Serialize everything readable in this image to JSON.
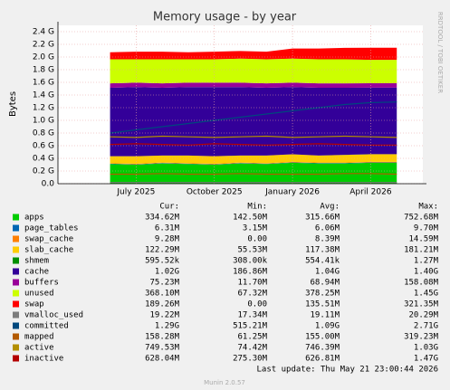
{
  "chart_data": {
    "type": "area",
    "title": "Memory usage - by year",
    "y_label": "Bytes",
    "side_text": "RRDTOOL / TOBI OETIKER",
    "grid": true,
    "x": [
      "2025-06",
      "2025-07",
      "2025-08",
      "2025-09",
      "2025-10",
      "2025-11",
      "2025-12",
      "2026-01",
      "2026-02",
      "2026-03",
      "2026-04",
      "2026-05"
    ],
    "xlim": [
      "2025-04",
      "2026-06"
    ],
    "xticks": [
      {
        "value": "2025-07",
        "label": "July 2025"
      },
      {
        "value": "2025-10",
        "label": "October 2025"
      },
      {
        "value": "2026-01",
        "label": "January 2026"
      },
      {
        "value": "2026-04",
        "label": "April 2026"
      }
    ],
    "ylim": [
      0,
      2.5
    ],
    "yticks": [
      {
        "value": 0,
        "label": "0.0"
      },
      {
        "value": 0.2,
        "label": "0.2 G"
      },
      {
        "value": 0.4,
        "label": "0.4 G"
      },
      {
        "value": 0.6,
        "label": "0.6 G"
      },
      {
        "value": 0.8,
        "label": "0.8 G"
      },
      {
        "value": 1.0,
        "label": "1.0 G"
      },
      {
        "value": 1.2,
        "label": "1.2 G"
      },
      {
        "value": 1.4,
        "label": "1.4 G"
      },
      {
        "value": 1.6,
        "label": "1.6 G"
      },
      {
        "value": 1.8,
        "label": "1.8 G"
      },
      {
        "value": 2.0,
        "label": "2.0 G"
      },
      {
        "value": 2.2,
        "label": "2.2 G"
      },
      {
        "value": 2.4,
        "label": "2.4 G"
      }
    ],
    "stats_headers": [
      "Cur:",
      "Min:",
      "Avg:",
      "Max:"
    ],
    "series": [
      {
        "name": "apps",
        "color": "#00cc00",
        "draw": "area",
        "stats": [
          "334.62M",
          "142.50M",
          "315.66M",
          "752.68M"
        ],
        "values": [
          0.31,
          0.3,
          0.32,
          0.31,
          0.3,
          0.32,
          0.31,
          0.33,
          0.32,
          0.32,
          0.33,
          0.33
        ]
      },
      {
        "name": "page_tables",
        "color": "#0066b3",
        "draw": "area",
        "stats": [
          "6.31M",
          "3.15M",
          "6.06M",
          "9.70M"
        ],
        "values": [
          0.006,
          0.006,
          0.006,
          0.006,
          0.006,
          0.006,
          0.006,
          0.006,
          0.006,
          0.006,
          0.006,
          0.006
        ]
      },
      {
        "name": "swap_cache",
        "color": "#ff8000",
        "draw": "area",
        "stats": [
          "9.28M",
          "0.00",
          "8.39M",
          "14.59M"
        ],
        "values": [
          0.008,
          0.008,
          0.008,
          0.008,
          0.008,
          0.008,
          0.008,
          0.008,
          0.008,
          0.008,
          0.009,
          0.009
        ]
      },
      {
        "name": "slab_cache",
        "color": "#ffcc00",
        "draw": "area",
        "stats": [
          "122.29M",
          "55.53M",
          "117.38M",
          "181.21M"
        ],
        "values": [
          0.11,
          0.12,
          0.11,
          0.12,
          0.12,
          0.11,
          0.12,
          0.12,
          0.11,
          0.12,
          0.12,
          0.12
        ]
      },
      {
        "name": "shmem",
        "color": "#008f00",
        "draw": "area",
        "stats": [
          "595.52k",
          "308.00k",
          "554.41k",
          "1.27M"
        ],
        "values": [
          0.0005,
          0.0005,
          0.0005,
          0.0005,
          0.0005,
          0.0005,
          0.0005,
          0.0005,
          0.0005,
          0.0005,
          0.0006,
          0.0006
        ]
      },
      {
        "name": "cache",
        "color": "#330099",
        "draw": "area",
        "stats": [
          "1.02G",
          "186.86M",
          "1.04G",
          "1.40G"
        ],
        "values": [
          1.08,
          1.09,
          1.07,
          1.08,
          1.09,
          1.08,
          1.07,
          1.06,
          1.07,
          1.06,
          1.05,
          1.05
        ]
      },
      {
        "name": "buffers",
        "color": "#990099",
        "draw": "area",
        "stats": [
          "75.23M",
          "11.70M",
          "68.94M",
          "158.08M"
        ],
        "values": [
          0.07,
          0.07,
          0.07,
          0.07,
          0.07,
          0.07,
          0.07,
          0.07,
          0.07,
          0.07,
          0.07,
          0.07
        ]
      },
      {
        "name": "unused",
        "color": "#ccff00",
        "draw": "area",
        "stats": [
          "368.10M",
          "67.32M",
          "378.25M",
          "1.45G"
        ],
        "values": [
          0.38,
          0.37,
          0.38,
          0.37,
          0.37,
          0.38,
          0.38,
          0.38,
          0.38,
          0.38,
          0.37,
          0.37
        ]
      },
      {
        "name": "swap",
        "color": "#ff0000",
        "draw": "area",
        "stats": [
          "189.26M",
          "0.00",
          "135.51M",
          "321.35M"
        ],
        "values": [
          0.11,
          0.12,
          0.12,
          0.11,
          0.12,
          0.12,
          0.12,
          0.16,
          0.17,
          0.18,
          0.19,
          0.19
        ]
      },
      {
        "name": "vmalloc_used",
        "color": "#7d7d7d",
        "draw": "line",
        "stats": [
          "19.22M",
          "17.34M",
          "19.11M",
          "20.29M"
        ],
        "values": [
          0.019,
          0.019,
          0.019,
          0.019,
          0.019,
          0.019,
          0.019,
          0.019,
          0.019,
          0.019,
          0.019,
          0.019
        ]
      },
      {
        "name": "committed",
        "color": "#00487d",
        "draw": "line",
        "stats": [
          "1.29G",
          "515.21M",
          "1.09G",
          "2.71G"
        ],
        "values": [
          0.8,
          0.85,
          0.9,
          0.95,
          1.0,
          1.05,
          1.1,
          1.15,
          1.2,
          1.25,
          1.28,
          1.29
        ]
      },
      {
        "name": "mapped",
        "color": "#b35a00",
        "draw": "line",
        "stats": [
          "158.28M",
          "61.25M",
          "155.00M",
          "319.23M"
        ],
        "values": [
          0.15,
          0.15,
          0.16,
          0.15,
          0.15,
          0.16,
          0.15,
          0.15,
          0.15,
          0.16,
          0.16,
          0.15
        ]
      },
      {
        "name": "active",
        "color": "#b38f00",
        "draw": "line",
        "stats": [
          "749.53M",
          "74.42M",
          "746.39M",
          "1.03G"
        ],
        "values": [
          0.74,
          0.73,
          0.75,
          0.74,
          0.73,
          0.74,
          0.75,
          0.73,
          0.74,
          0.75,
          0.74,
          0.73
        ]
      },
      {
        "name": "inactive",
        "color": "#b30000",
        "draw": "line",
        "stats": [
          "628.04M",
          "275.30M",
          "626.81M",
          "1.47G"
        ],
        "values": [
          0.62,
          0.63,
          0.62,
          0.61,
          0.63,
          0.62,
          0.61,
          0.62,
          0.63,
          0.62,
          0.61,
          0.61
        ]
      }
    ],
    "footer": "Last update: Thu May 21 23:00:44 2026",
    "credit": "Munin 2.0.57"
  }
}
